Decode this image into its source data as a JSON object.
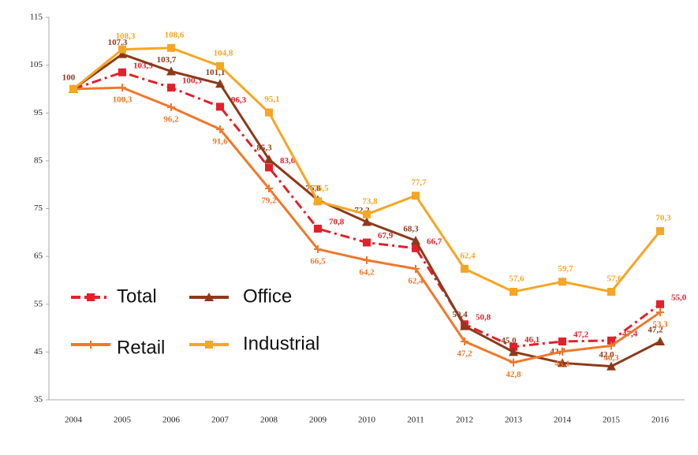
{
  "chart_data": {
    "type": "line",
    "categories": [
      "2004",
      "2005",
      "2006",
      "2007",
      "2008",
      "2009",
      "2010",
      "2011",
      "2012",
      "2013",
      "2014",
      "2015",
      "2016"
    ],
    "ylim": [
      35,
      115
    ],
    "yticks": [
      35,
      45,
      55,
      65,
      75,
      85,
      95,
      105,
      115
    ],
    "grid": false,
    "legend": "lower-left",
    "series": [
      {
        "name": "Total",
        "color": "#e3202a",
        "dash": "dash-dot",
        "marker": "square",
        "values": [
          100,
          103.5,
          100.3,
          96.3,
          83.6,
          70.8,
          67.9,
          66.7,
          50.8,
          46.1,
          47.2,
          47.4,
          55.0
        ],
        "value_labels": [
          null,
          "103,5",
          "100,3",
          "96,3",
          "83,6",
          "70,8",
          "67,9",
          "66,7",
          "50,8",
          "46,1",
          "47,2",
          "47,4",
          "55,0"
        ]
      },
      {
        "name": "Office",
        "color": "#8b3a1a",
        "dash": "solid",
        "marker": "triangle",
        "values": [
          100,
          107.3,
          103.7,
          101.1,
          85.3,
          76.8,
          72.2,
          68.3,
          50.4,
          45.0,
          42.7,
          42.0,
          47.2
        ],
        "value_labels": [
          "100",
          "107,3",
          "103,7",
          "101,1",
          "85,3",
          "76,8",
          "72,2",
          "68,3",
          "50,4",
          "45,0",
          "42,7",
          "42,0",
          "47,2"
        ]
      },
      {
        "name": "Retail",
        "color": "#f0782a",
        "dash": "solid",
        "marker": "plus",
        "values": [
          100,
          100.3,
          96.2,
          91.6,
          79.2,
          66.5,
          64.2,
          62.4,
          47.2,
          42.8,
          45.1,
          46.3,
          53.3
        ],
        "value_labels": [
          null,
          "100,3",
          "96,2",
          "91,6",
          "79,2",
          "66,5",
          "64,2",
          "62,4",
          "47,2",
          "42,8",
          "45,1",
          "46,3",
          "53,3"
        ]
      },
      {
        "name": "Industrial",
        "color": "#f5a623",
        "dash": "solid",
        "marker": "square",
        "values": [
          100,
          108.3,
          108.6,
          104.8,
          95.1,
          76.5,
          73.8,
          77.7,
          62.4,
          57.6,
          59.7,
          57.6,
          70.3
        ],
        "value_labels": [
          null,
          "108,3",
          "108,6",
          "104,8",
          "95,1",
          "76,5",
          "73,8",
          "77,7",
          "62,4",
          "57,6",
          "59,7",
          "57,6",
          "70,3"
        ]
      }
    ]
  }
}
